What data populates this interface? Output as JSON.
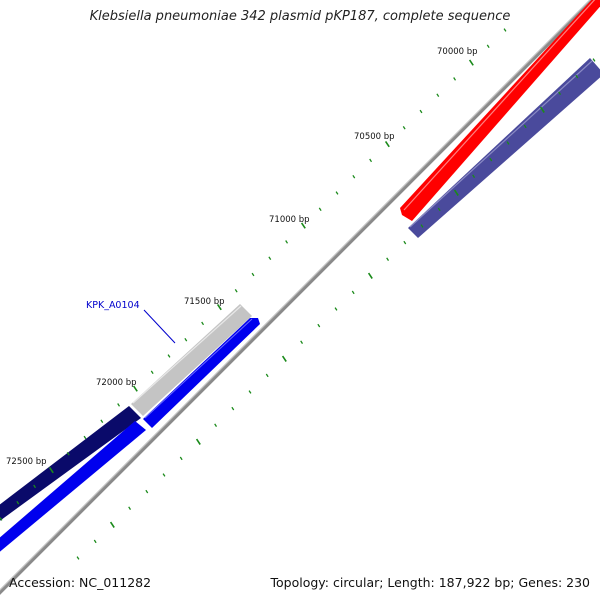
{
  "header": {
    "title": "Klebsiella pneumoniae 342 plasmid pKP187, complete sequence"
  },
  "footer": {
    "accession": "Accession: NC_011282",
    "summary": "Topology: circular; Length: 187,922 bp; Genes: 230"
  },
  "map": {
    "ticks": [
      {
        "label": "70000 bp"
      },
      {
        "label": "70500 bp"
      },
      {
        "label": "71000 bp"
      },
      {
        "label": "71500 bp"
      },
      {
        "label": "72000 bp"
      },
      {
        "label": "72500 bp"
      }
    ],
    "gene_label": "KPK_A0104",
    "colors": {
      "backbone": "#888888",
      "tick": "#1a8a1a",
      "feature_red": "#ff0000",
      "feature_slate": "#4a4a9a",
      "feature_navy": "#000080",
      "feature_blue": "#0000ff",
      "feature_gray": "#c0c0c0",
      "gene_label": "#0000cc"
    }
  }
}
